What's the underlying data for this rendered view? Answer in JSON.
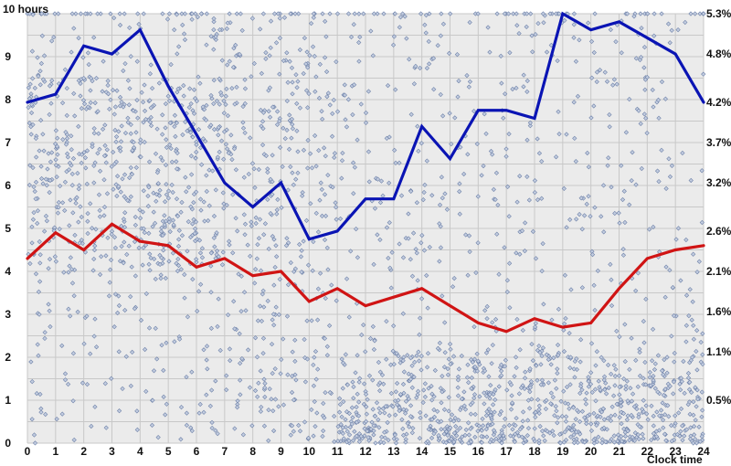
{
  "chart_data": {
    "type": "line",
    "title": "",
    "ylabel_left": "10 hours",
    "xlabel": "Clock time",
    "grid": true,
    "legend": "none",
    "x": [
      0,
      1,
      2,
      3,
      4,
      5,
      6,
      7,
      8,
      9,
      10,
      11,
      12,
      13,
      14,
      15,
      16,
      17,
      18,
      19,
      20,
      21,
      22,
      23,
      24
    ],
    "xlim": [
      0,
      24
    ],
    "ylim_left": [
      0,
      10
    ],
    "left_ticks": [
      "0",
      "1",
      "2",
      "3",
      "4",
      "5",
      "6",
      "7",
      "8",
      "9"
    ],
    "right_ticks": [
      "0.5%",
      "1.1%",
      "1.6%",
      "2.1%",
      "2.6%",
      "3.2%",
      "3.7%",
      "4.2%",
      "4.8%",
      "5.3%"
    ],
    "colors": {
      "blue_series": "#0a14b4",
      "red_series": "#d01414",
      "scatter_fill": "#c3cde0",
      "scatter_stroke": "#6f82a8",
      "grid": "#c8c8c8",
      "background": "#ebebeb"
    },
    "series": [
      {
        "axis": "right",
        "values": [
          4.2,
          4.3,
          4.9,
          4.8,
          5.1,
          4.4,
          3.8,
          3.2,
          2.9,
          3.2,
          2.5,
          2.6,
          3.0,
          3.0,
          3.9,
          3.5,
          4.1,
          4.1,
          4.0,
          5.3,
          5.1,
          5.2,
          5.0,
          4.8,
          4.2
        ]
      },
      {
        "axis": "left",
        "values": [
          4.3,
          4.9,
          4.5,
          5.1,
          4.7,
          4.6,
          4.1,
          4.3,
          3.9,
          4.0,
          3.3,
          3.6,
          3.2,
          3.4,
          3.6,
          3.2,
          2.8,
          2.6,
          2.9,
          2.7,
          2.8,
          3.6,
          4.3,
          4.5,
          4.6
        ]
      }
    ],
    "scatter": {
      "description_axis": "left",
      "dense_low_band_start_x": 11
    }
  }
}
